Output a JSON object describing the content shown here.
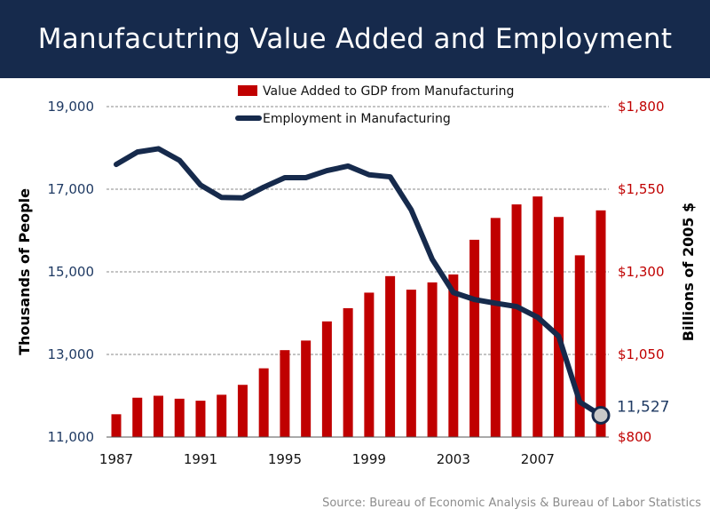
{
  "title": "Manufacutring Value Added and Employment",
  "source": "Source: Bureau of Economic Analysis & Bureau of Labor Statistics",
  "chart_data": {
    "type": "bar+line",
    "title": "Manufacutring Value Added and Employment",
    "x": [
      1987,
      1988,
      1989,
      1990,
      1991,
      1992,
      1993,
      1994,
      1995,
      1996,
      1997,
      1998,
      1999,
      2000,
      2001,
      2002,
      2003,
      2004,
      2005,
      2006,
      2007,
      2008,
      2009,
      2010
    ],
    "x_tick_labels": [
      "1987",
      "1991",
      "1995",
      "1999",
      "2003",
      "2007"
    ],
    "left_axis": {
      "title": "Thousands of People",
      "range": [
        11000,
        19000
      ],
      "ticks": [
        "11,000",
        "13,000",
        "15,000",
        "17,000",
        "19,000"
      ]
    },
    "right_axis": {
      "title": "Billions of 2005 $",
      "range": [
        800,
        1800
      ],
      "ticks": [
        "$800",
        "$1,050",
        "$1,300",
        "$1,550",
        "$1,800"
      ]
    },
    "series": [
      {
        "name": "Value Added to GDP from Manufacturing",
        "type": "bar",
        "axis": "right",
        "color": "#c00000",
        "values": [
          869,
          919,
          925,
          916,
          910,
          928,
          958,
          1008,
          1063,
          1092,
          1150,
          1190,
          1237,
          1287,
          1246,
          1268,
          1292,
          1397,
          1463,
          1504,
          1528,
          1466,
          1350,
          1486
        ]
      },
      {
        "name": "Employment in Manufacturing",
        "type": "line",
        "axis": "left",
        "color": "#162a4c",
        "values": [
          17600,
          17900,
          17980,
          17700,
          17100,
          16800,
          16790,
          17050,
          17280,
          17280,
          17450,
          17560,
          17350,
          17300,
          16500,
          15300,
          14500,
          14330,
          14240,
          14160,
          13900,
          13440,
          11850,
          11527
        ]
      }
    ],
    "annotation": "11,527",
    "legend": "top-center",
    "grid": true
  },
  "colors": {
    "title_bg": "#162a4c",
    "bar": "#c00000",
    "line": "#162a4c",
    "left_ticks": "#1f3a63",
    "right_ticks": "#c00000"
  }
}
